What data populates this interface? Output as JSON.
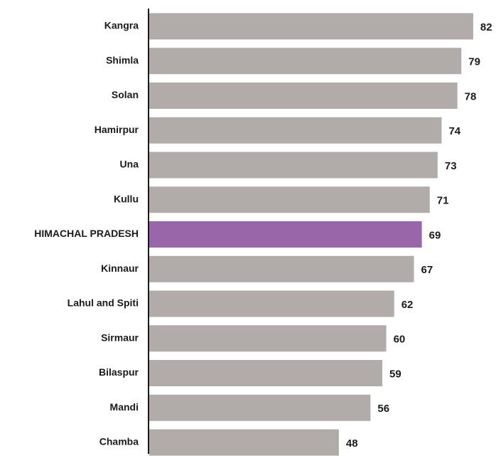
{
  "chart_data": {
    "type": "bar",
    "orientation": "horizontal",
    "categories": [
      "Kangra",
      "Shimla",
      "Solan",
      "Hamirpur",
      "Una",
      "Kullu",
      "HIMACHAL PRADESH",
      "Kinnaur",
      "Lahul and Spiti",
      "Sirmaur",
      "Bilaspur",
      "Mandi",
      "Chamba"
    ],
    "values": [
      82,
      79,
      78,
      74,
      73,
      71,
      69,
      67,
      62,
      60,
      59,
      56,
      48
    ],
    "colors": [
      "#b1acaa",
      "#b1acaa",
      "#b1acaa",
      "#b1acaa",
      "#b1acaa",
      "#b1acaa",
      "#9966aa",
      "#b1acaa",
      "#b1acaa",
      "#b1acaa",
      "#b1acaa",
      "#b1acaa",
      "#b1acaa"
    ]
  }
}
